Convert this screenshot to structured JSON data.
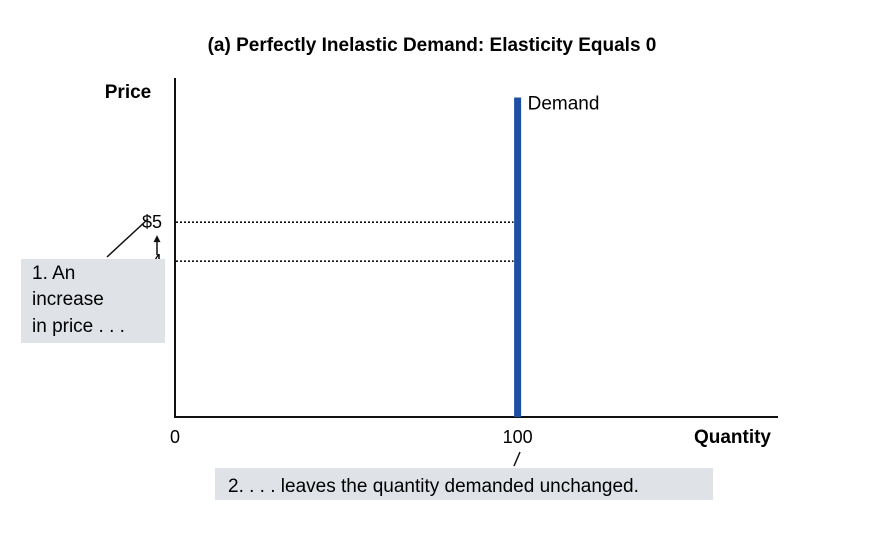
{
  "chart_data": {
    "type": "line",
    "title": "(a) Perfectly Inelastic Demand: Elasticity Equals 0",
    "xlabel": "Quantity",
    "ylabel": "Price",
    "origin_label": "0",
    "x_ticks": [
      {
        "value": 100,
        "label": "100"
      }
    ],
    "y_ticks": [
      {
        "value": 5,
        "label": "$5"
      },
      {
        "value": 4,
        "label": "4"
      }
    ],
    "xlim": [
      0,
      176
    ],
    "ylim": [
      0,
      8.7
    ],
    "series": [
      {
        "name": "Demand",
        "color": "#1f4fa3",
        "points": [
          {
            "x": 100,
            "y": 0
          },
          {
            "x": 100,
            "y": 8.2
          }
        ]
      }
    ],
    "guides": [
      {
        "price": 5,
        "quantity": 100
      },
      {
        "price": 4,
        "quantity": 100
      }
    ],
    "annotations": {
      "price_increase": [
        "1. An",
        "increase",
        "in price . . ."
      ],
      "quantity_unchanged": "2. . . . leaves the quantity demanded unchanged."
    },
    "annotation_box_color": "#dfe2e6",
    "grid": false,
    "legend": "none"
  }
}
